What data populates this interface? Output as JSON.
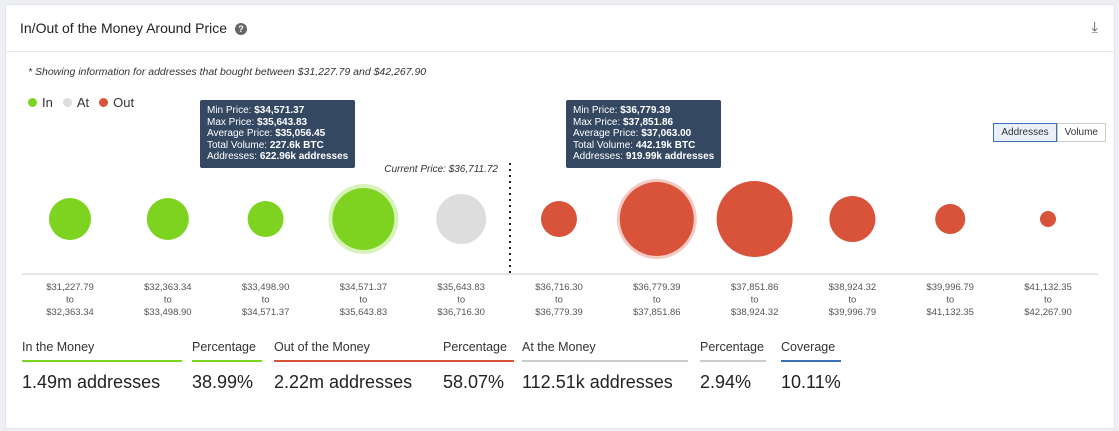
{
  "header": {
    "title": "In/Out of the Money Around Price",
    "help_icon": "question-circle-icon",
    "download_icon": "download-icon"
  },
  "note": "* Showing information for addresses that bought between $31,227.79 and $42,267.90",
  "legend": [
    {
      "label": "In",
      "color": "#7ed321"
    },
    {
      "label": "At",
      "color": "#dddddd"
    },
    {
      "label": "Out",
      "color": "#d9523a"
    }
  ],
  "toggle": {
    "addresses": "Addresses",
    "volume": "Volume",
    "selected": "Addresses"
  },
  "chart_data": {
    "type": "bubble",
    "current_price_label": "Current Price: $36,711.72",
    "categories": [
      {
        "from": "$31,227.79",
        "to": "$32,363.34",
        "status": "In"
      },
      {
        "from": "$32,363.34",
        "to": "$33,498.90",
        "status": "In"
      },
      {
        "from": "$33,498.90",
        "to": "$34,571.37",
        "status": "In"
      },
      {
        "from": "$34,571.37",
        "to": "$35,643.83",
        "status": "In"
      },
      {
        "from": "$35,643.83",
        "to": "$36,716.30",
        "status": "At"
      },
      {
        "from": "$36,716.30",
        "to": "$36,779.39",
        "status": "Out"
      },
      {
        "from": "$36,779.39",
        "to": "$37,851.86",
        "status": "Out"
      },
      {
        "from": "$37,851.86",
        "to": "$38,924.32",
        "status": "Out"
      },
      {
        "from": "$38,924.32",
        "to": "$39,996.79",
        "status": "Out"
      },
      {
        "from": "$39,996.79",
        "to": "$41,132.35",
        "status": "Out"
      },
      {
        "from": "$41,132.35",
        "to": "$42,267.90",
        "status": "Out"
      }
    ],
    "range_sep": "to",
    "tooltips": [
      {
        "min": "$34,571.37",
        "max": "$35,643.83",
        "avg": "$35,056.45",
        "volume": "227.6k BTC",
        "addresses": "622.96k addresses"
      },
      {
        "min": "$36,779.39",
        "max": "$37,851.86",
        "avg": "$37,063.00",
        "volume": "442.19k BTC",
        "addresses": "919.99k addresses"
      }
    ],
    "tooltip_labels": {
      "min": "Min Price: ",
      "max": "Max Price: ",
      "avg": "Average Price: ",
      "volume": "Total Volume: ",
      "addresses": "Addresses: "
    }
  },
  "stats": [
    {
      "label": "In the Money",
      "value": "1.49m addresses",
      "color": "#7ed321"
    },
    {
      "label": "Percentage",
      "value": "38.99%",
      "color": "#7ed321"
    },
    {
      "label": "Out of the Money",
      "value": "2.22m addresses",
      "color": "#d9523a"
    },
    {
      "label": "Percentage",
      "value": "58.07%",
      "color": "#d9523a"
    },
    {
      "label": "At the Money",
      "value": "112.51k addresses",
      "color": "#cccccc"
    },
    {
      "label": "Percentage",
      "value": "2.94%",
      "color": "#cccccc"
    },
    {
      "label": "Coverage",
      "value": "10.11%",
      "color": "#3b6fb6"
    }
  ]
}
